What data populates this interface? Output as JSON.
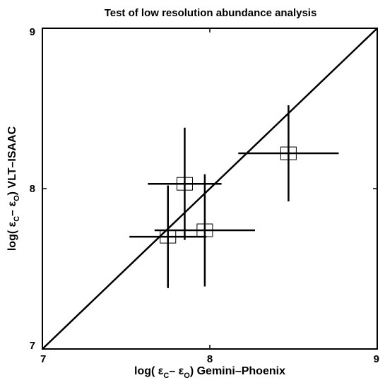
{
  "chart_data": {
    "type": "scatter",
    "title": "Test of low resolution abundance analysis",
    "xlabel": {
      "prefix": "log( ",
      "eps1": "ε",
      "sub1": "C",
      "minus": "– ",
      "eps2": "ε",
      "sub2": "O",
      "suffix": ") Gemini–Phoenix"
    },
    "ylabel": {
      "prefix": "log( ",
      "eps1": "ε",
      "sub1": "C",
      "minus": "– ",
      "eps2": "ε",
      "sub2": "O",
      "suffix": ") VLT–ISAAC"
    },
    "xlim": [
      7,
      9
    ],
    "ylim": [
      7,
      9
    ],
    "xticks": [
      {
        "value": 7,
        "label": "7"
      },
      {
        "value": 8,
        "label": "8"
      },
      {
        "value": 9,
        "label": "9"
      }
    ],
    "yticks": [
      {
        "value": 7,
        "label": "7"
      },
      {
        "value": 8,
        "label": "8"
      },
      {
        "value": 9,
        "label": "9"
      }
    ],
    "grid": false,
    "reference_line": {
      "type": "identity",
      "from": [
        7,
        7
      ],
      "to": [
        9,
        9
      ]
    },
    "points": [
      {
        "x": 7.75,
        "y": 7.7,
        "xerr": 0.23,
        "yerr": 0.32
      },
      {
        "x": 7.85,
        "y": 8.03,
        "xerr": 0.22,
        "yerr": 0.35
      },
      {
        "x": 7.97,
        "y": 7.74,
        "xerr": 0.3,
        "yerr": 0.35
      },
      {
        "x": 8.47,
        "y": 8.22,
        "xerr": 0.3,
        "yerr": 0.3
      }
    ]
  }
}
